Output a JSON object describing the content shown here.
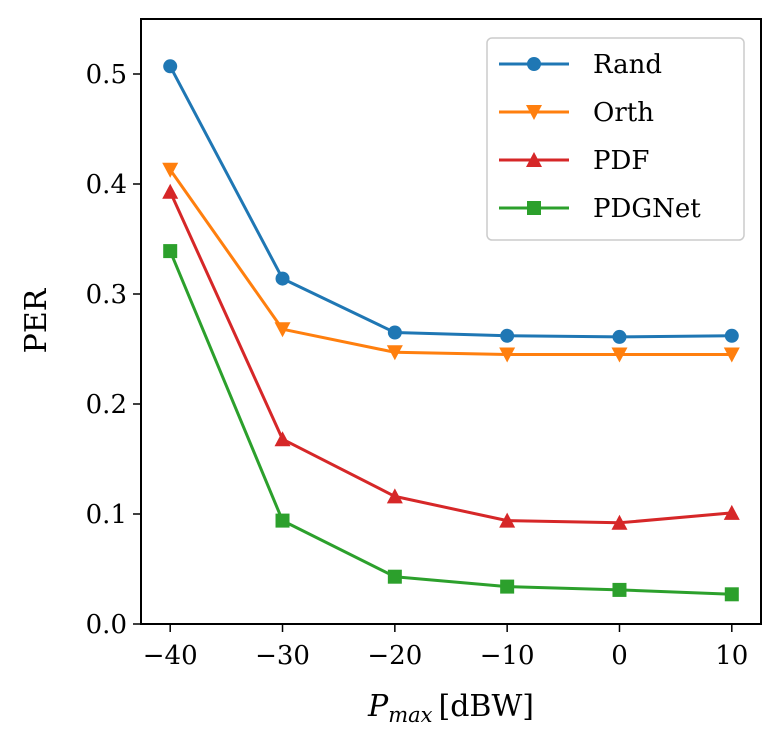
{
  "chart_data": {
    "type": "line",
    "xlabel_var": "P",
    "xlabel_sub": "max",
    "xlabel_unit": "[dBW]",
    "ylabel": "PER",
    "x": [
      -40,
      -30,
      -20,
      -10,
      0,
      10
    ],
    "xticks": [
      "−40",
      "−30",
      "−20",
      "−10",
      "0",
      "10"
    ],
    "xlim": [
      -42.6,
      12.6
    ],
    "ylim": [
      0,
      0.55
    ],
    "yticks": [
      "0.0",
      "0.1",
      "0.2",
      "0.3",
      "0.4",
      "0.5"
    ],
    "grid": false,
    "legend_position": "top-right",
    "series": [
      {
        "name": "Rand",
        "color": "#1f77b4",
        "marker": "circle",
        "values": [
          0.507,
          0.314,
          0.265,
          0.262,
          0.261,
          0.262
        ]
      },
      {
        "name": "Orth",
        "color": "#ff7f0e",
        "marker": "triangle-down",
        "values": [
          0.413,
          0.268,
          0.247,
          0.245,
          0.245,
          0.245
        ]
      },
      {
        "name": "PDF",
        "color": "#d62728",
        "marker": "triangle-up",
        "values": [
          0.393,
          0.168,
          0.116,
          0.094,
          0.092,
          0.101
        ]
      },
      {
        "name": "PDGNet",
        "color": "#2ca02c",
        "marker": "square",
        "values": [
          0.339,
          0.094,
          0.043,
          0.034,
          0.031,
          0.027
        ]
      }
    ]
  }
}
